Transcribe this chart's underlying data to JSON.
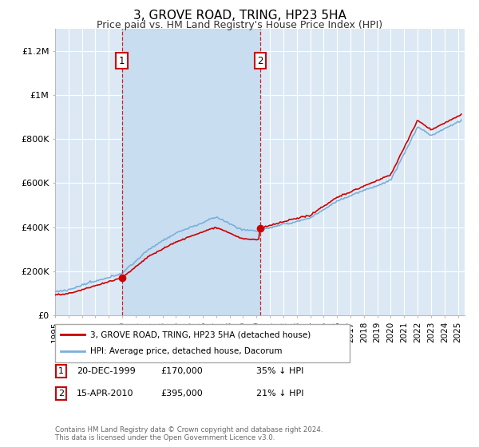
{
  "title": "3, GROVE ROAD, TRING, HP23 5HA",
  "subtitle": "Price paid vs. HM Land Registry's House Price Index (HPI)",
  "title_fontsize": 11,
  "subtitle_fontsize": 9,
  "bg_color": "#ffffff",
  "plot_bg_color": "#dce9f5",
  "shade_color": "#c8ddf0",
  "grid_color": "#ffffff",
  "ylabel_ticks": [
    "£0",
    "£200K",
    "£400K",
    "£600K",
    "£800K",
    "£1M",
    "£1.2M"
  ],
  "ytick_values": [
    0,
    200000,
    400000,
    600000,
    800000,
    1000000,
    1200000
  ],
  "ylim": [
    0,
    1300000
  ],
  "xlim_start": 1995.0,
  "xlim_end": 2025.5,
  "hpi_color": "#7ab0d8",
  "price_color": "#cc0000",
  "transaction1_x": 1999.97,
  "transaction1_y": 170000,
  "transaction1_label": "1",
  "transaction2_x": 2010.29,
  "transaction2_y": 395000,
  "transaction2_label": "2",
  "legend_label1": "3, GROVE ROAD, TRING, HP23 5HA (detached house)",
  "legend_label2": "HPI: Average price, detached house, Dacorum",
  "annotation1_date": "20-DEC-1999",
  "annotation1_price": "£170,000",
  "annotation1_hpi": "35% ↓ HPI",
  "annotation2_date": "15-APR-2010",
  "annotation2_price": "£395,000",
  "annotation2_hpi": "21% ↓ HPI",
  "footer": "Contains HM Land Registry data © Crown copyright and database right 2024.\nThis data is licensed under the Open Government Licence v3.0."
}
